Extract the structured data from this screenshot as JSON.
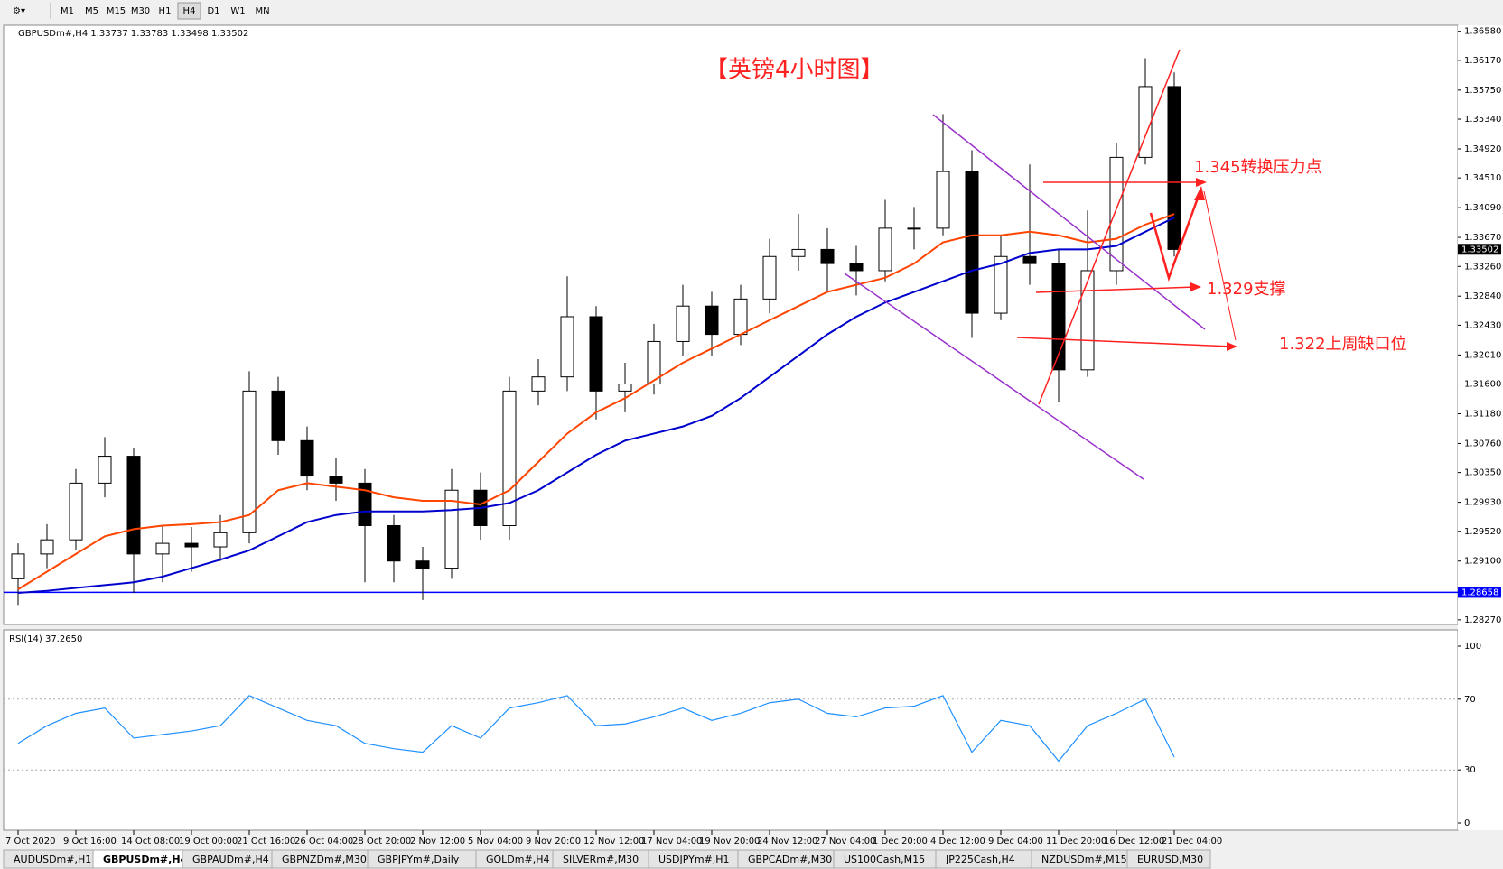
{
  "toolbar": {
    "timeframes": [
      "M1",
      "M5",
      "M15",
      "M30",
      "H1",
      "H4",
      "D1",
      "W1",
      "MN"
    ],
    "active": "H4"
  },
  "chart_data": [
    {
      "type": "candlestick",
      "title": "GBPUSDm#,H4  1.33737 1.33783 1.33498 1.33502",
      "annotations": [
        "【英镑4小时图】",
        "1.345转换压力点",
        "1.329支撑",
        "1.322上周缺口位"
      ],
      "categories": [
        "7 Oct 2020",
        null,
        "9 Oct 16:00",
        null,
        "14 Oct 08:00",
        null,
        "19 Oct 00:00",
        null,
        "21 Oct 16:00",
        null,
        "26 Oct 04:00",
        null,
        "28 Oct 20:00",
        null,
        "2 Nov 12:00",
        null,
        "5 Nov 04:00",
        null,
        "9 Nov 20:00",
        null,
        "12 Nov 12:00",
        null,
        "17 Nov 04:00",
        null,
        "19 Nov 20:00",
        null,
        "24 Nov 12:00",
        null,
        "27 Nov 04:00",
        null,
        "1 Dec 20:00",
        null,
        "4 Dec 12:00",
        null,
        "9 Dec 04:00",
        null,
        "11 Dec 20:00",
        null,
        "16 Dec 12:00",
        null,
        "21 Dec 04:00"
      ],
      "open": [
        1.2885,
        1.292,
        1.294,
        1.302,
        1.3058,
        1.292,
        1.2935,
        1.293,
        1.295,
        1.315,
        1.308,
        1.303,
        1.302,
        1.296,
        1.291,
        1.29,
        1.301,
        1.296,
        1.315,
        1.317,
        1.3255,
        1.315,
        1.316,
        1.322,
        1.327,
        1.323,
        1.328,
        1.334,
        1.335,
        1.333,
        1.332,
        1.338,
        1.338,
        1.346,
        1.326,
        1.334,
        1.333,
        1.318,
        1.332,
        1.348,
        1.358
      ],
      "high": [
        1.2935,
        1.2962,
        1.304,
        1.3085,
        1.307,
        1.296,
        1.2958,
        1.2975,
        1.3178,
        1.317,
        1.31,
        1.3055,
        1.304,
        1.2975,
        1.293,
        1.304,
        1.3035,
        1.317,
        1.3195,
        1.3312,
        1.327,
        1.319,
        1.3245,
        1.33,
        1.329,
        1.33,
        1.3365,
        1.34,
        1.338,
        1.3355,
        1.342,
        1.341,
        1.3541,
        1.349,
        1.337,
        1.347,
        1.335,
        1.3405,
        1.35,
        1.362,
        1.36
      ],
      "low": [
        1.2848,
        1.29,
        1.2925,
        1.3,
        1.2865,
        1.288,
        1.2895,
        1.291,
        1.2935,
        1.306,
        1.301,
        1.2995,
        1.288,
        1.288,
        1.2855,
        1.2885,
        1.294,
        1.294,
        1.313,
        1.315,
        1.311,
        1.312,
        1.3145,
        1.32,
        1.32,
        1.3215,
        1.326,
        1.332,
        1.329,
        1.3285,
        1.3305,
        1.335,
        1.337,
        1.3225,
        1.325,
        1.33,
        1.3135,
        1.317,
        1.33,
        1.347,
        1.334
      ],
      "close": [
        1.292,
        1.294,
        1.302,
        1.3058,
        1.292,
        1.2935,
        1.293,
        1.295,
        1.315,
        1.308,
        1.303,
        1.302,
        1.296,
        1.291,
        1.29,
        1.301,
        1.296,
        1.315,
        1.317,
        1.3255,
        1.315,
        1.316,
        1.322,
        1.327,
        1.323,
        1.328,
        1.334,
        1.335,
        1.333,
        1.332,
        1.338,
        1.338,
        1.346,
        1.326,
        1.334,
        1.333,
        1.318,
        1.332,
        1.348,
        1.358,
        1.335
      ],
      "series": [
        {
          "color": "#ff4500",
          "values": [
            1.287,
            1.2895,
            1.292,
            1.2945,
            1.2955,
            1.296,
            1.2962,
            1.2965,
            1.2975,
            1.301,
            1.302,
            1.3015,
            1.301,
            1.3,
            1.2995,
            1.2995,
            1.299,
            1.301,
            1.305,
            1.309,
            1.312,
            1.314,
            1.3165,
            1.319,
            1.321,
            1.323,
            1.325,
            1.327,
            1.329,
            1.33,
            1.331,
            1.333,
            1.336,
            1.337,
            1.337,
            1.3375,
            1.337,
            1.336,
            1.3365,
            1.3385,
            1.34
          ]
        },
        {
          "color": "#0000cd",
          "values": [
            1.2865,
            1.2868,
            1.2872,
            1.2876,
            1.288,
            1.2888,
            1.29,
            1.2912,
            1.2925,
            1.2945,
            1.2965,
            1.2975,
            1.298,
            1.298,
            1.298,
            1.2982,
            1.2985,
            1.2992,
            1.301,
            1.3035,
            1.306,
            1.308,
            1.309,
            1.31,
            1.3115,
            1.314,
            1.317,
            1.32,
            1.323,
            1.3255,
            1.3275,
            1.329,
            1.3305,
            1.332,
            1.333,
            1.3345,
            1.335,
            1.335,
            1.3355,
            1.3375,
            1.3395
          ]
        }
      ],
      "ylim": [
        1.2823,
        1.3664
      ],
      "yticks": [
        {
          "value": 1.3658,
          "label": "1.36580"
        },
        {
          "value": 1.3617,
          "label": "1.36170"
        },
        {
          "value": 1.3575,
          "label": "1.35750"
        },
        {
          "value": 1.3534,
          "label": "1.35340"
        },
        {
          "value": 1.3492,
          "label": "1.34920"
        },
        {
          "value": 1.3451,
          "label": "1.34510"
        },
        {
          "value": 1.3409,
          "label": "1.34090"
        },
        {
          "value": 1.3367,
          "label": "1.33670"
        },
        {
          "value": 1.3326,
          "label": "1.33260"
        },
        {
          "value": 1.3284,
          "label": "1.32840"
        },
        {
          "value": 1.3243,
          "label": "1.32430"
        },
        {
          "value": 1.3201,
          "label": "1.32010"
        },
        {
          "value": 1.316,
          "label": "1.31600"
        },
        {
          "value": 1.3118,
          "label": "1.31180"
        },
        {
          "value": 1.3076,
          "label": "1.30760"
        },
        {
          "value": 1.3035,
          "label": "1.30350"
        },
        {
          "value": 1.2993,
          "label": "1.29930"
        },
        {
          "value": 1.2952,
          "label": "1.29520"
        },
        {
          "value": 1.291,
          "label": "1.29100"
        },
        {
          "value": 1.2827,
          "label": "1.28270"
        }
      ],
      "hline": {
        "value": 1.28658,
        "color": "#0000ff"
      },
      "last": 1.33502
    },
    {
      "type": "line",
      "title": "RSI(14) 37.2650",
      "color": "#1e90ff",
      "values": [
        45,
        55,
        62,
        65,
        48,
        50,
        52,
        55,
        72,
        65,
        58,
        55,
        45,
        42,
        40,
        55,
        48,
        65,
        68,
        72,
        55,
        56,
        60,
        65,
        58,
        62,
        68,
        70,
        62,
        60,
        65,
        66,
        72,
        40,
        58,
        55,
        35,
        55,
        62,
        70,
        37.265
      ],
      "ylim": [
        0,
        100
      ],
      "yticks": [
        0,
        30,
        70,
        100
      ],
      "levels": [
        30,
        70
      ]
    }
  ],
  "tabs": {
    "items": [
      "AUDUSDm#,H1",
      "GBPUSDm#,H4",
      "GBPAUDm#,H4",
      "GBPNZDm#,M30",
      "GBPJPYm#,Daily",
      "GOLDm#,H4",
      "SILVERm#,M30",
      "USDJPYm#,H1",
      "GBPCADm#,M30",
      "US100Cash,M15",
      "JP225Cash,H4",
      "NZDUSDm#,M15",
      "EURUSD,M30"
    ],
    "active": "GBPUSDm#,H4"
  }
}
